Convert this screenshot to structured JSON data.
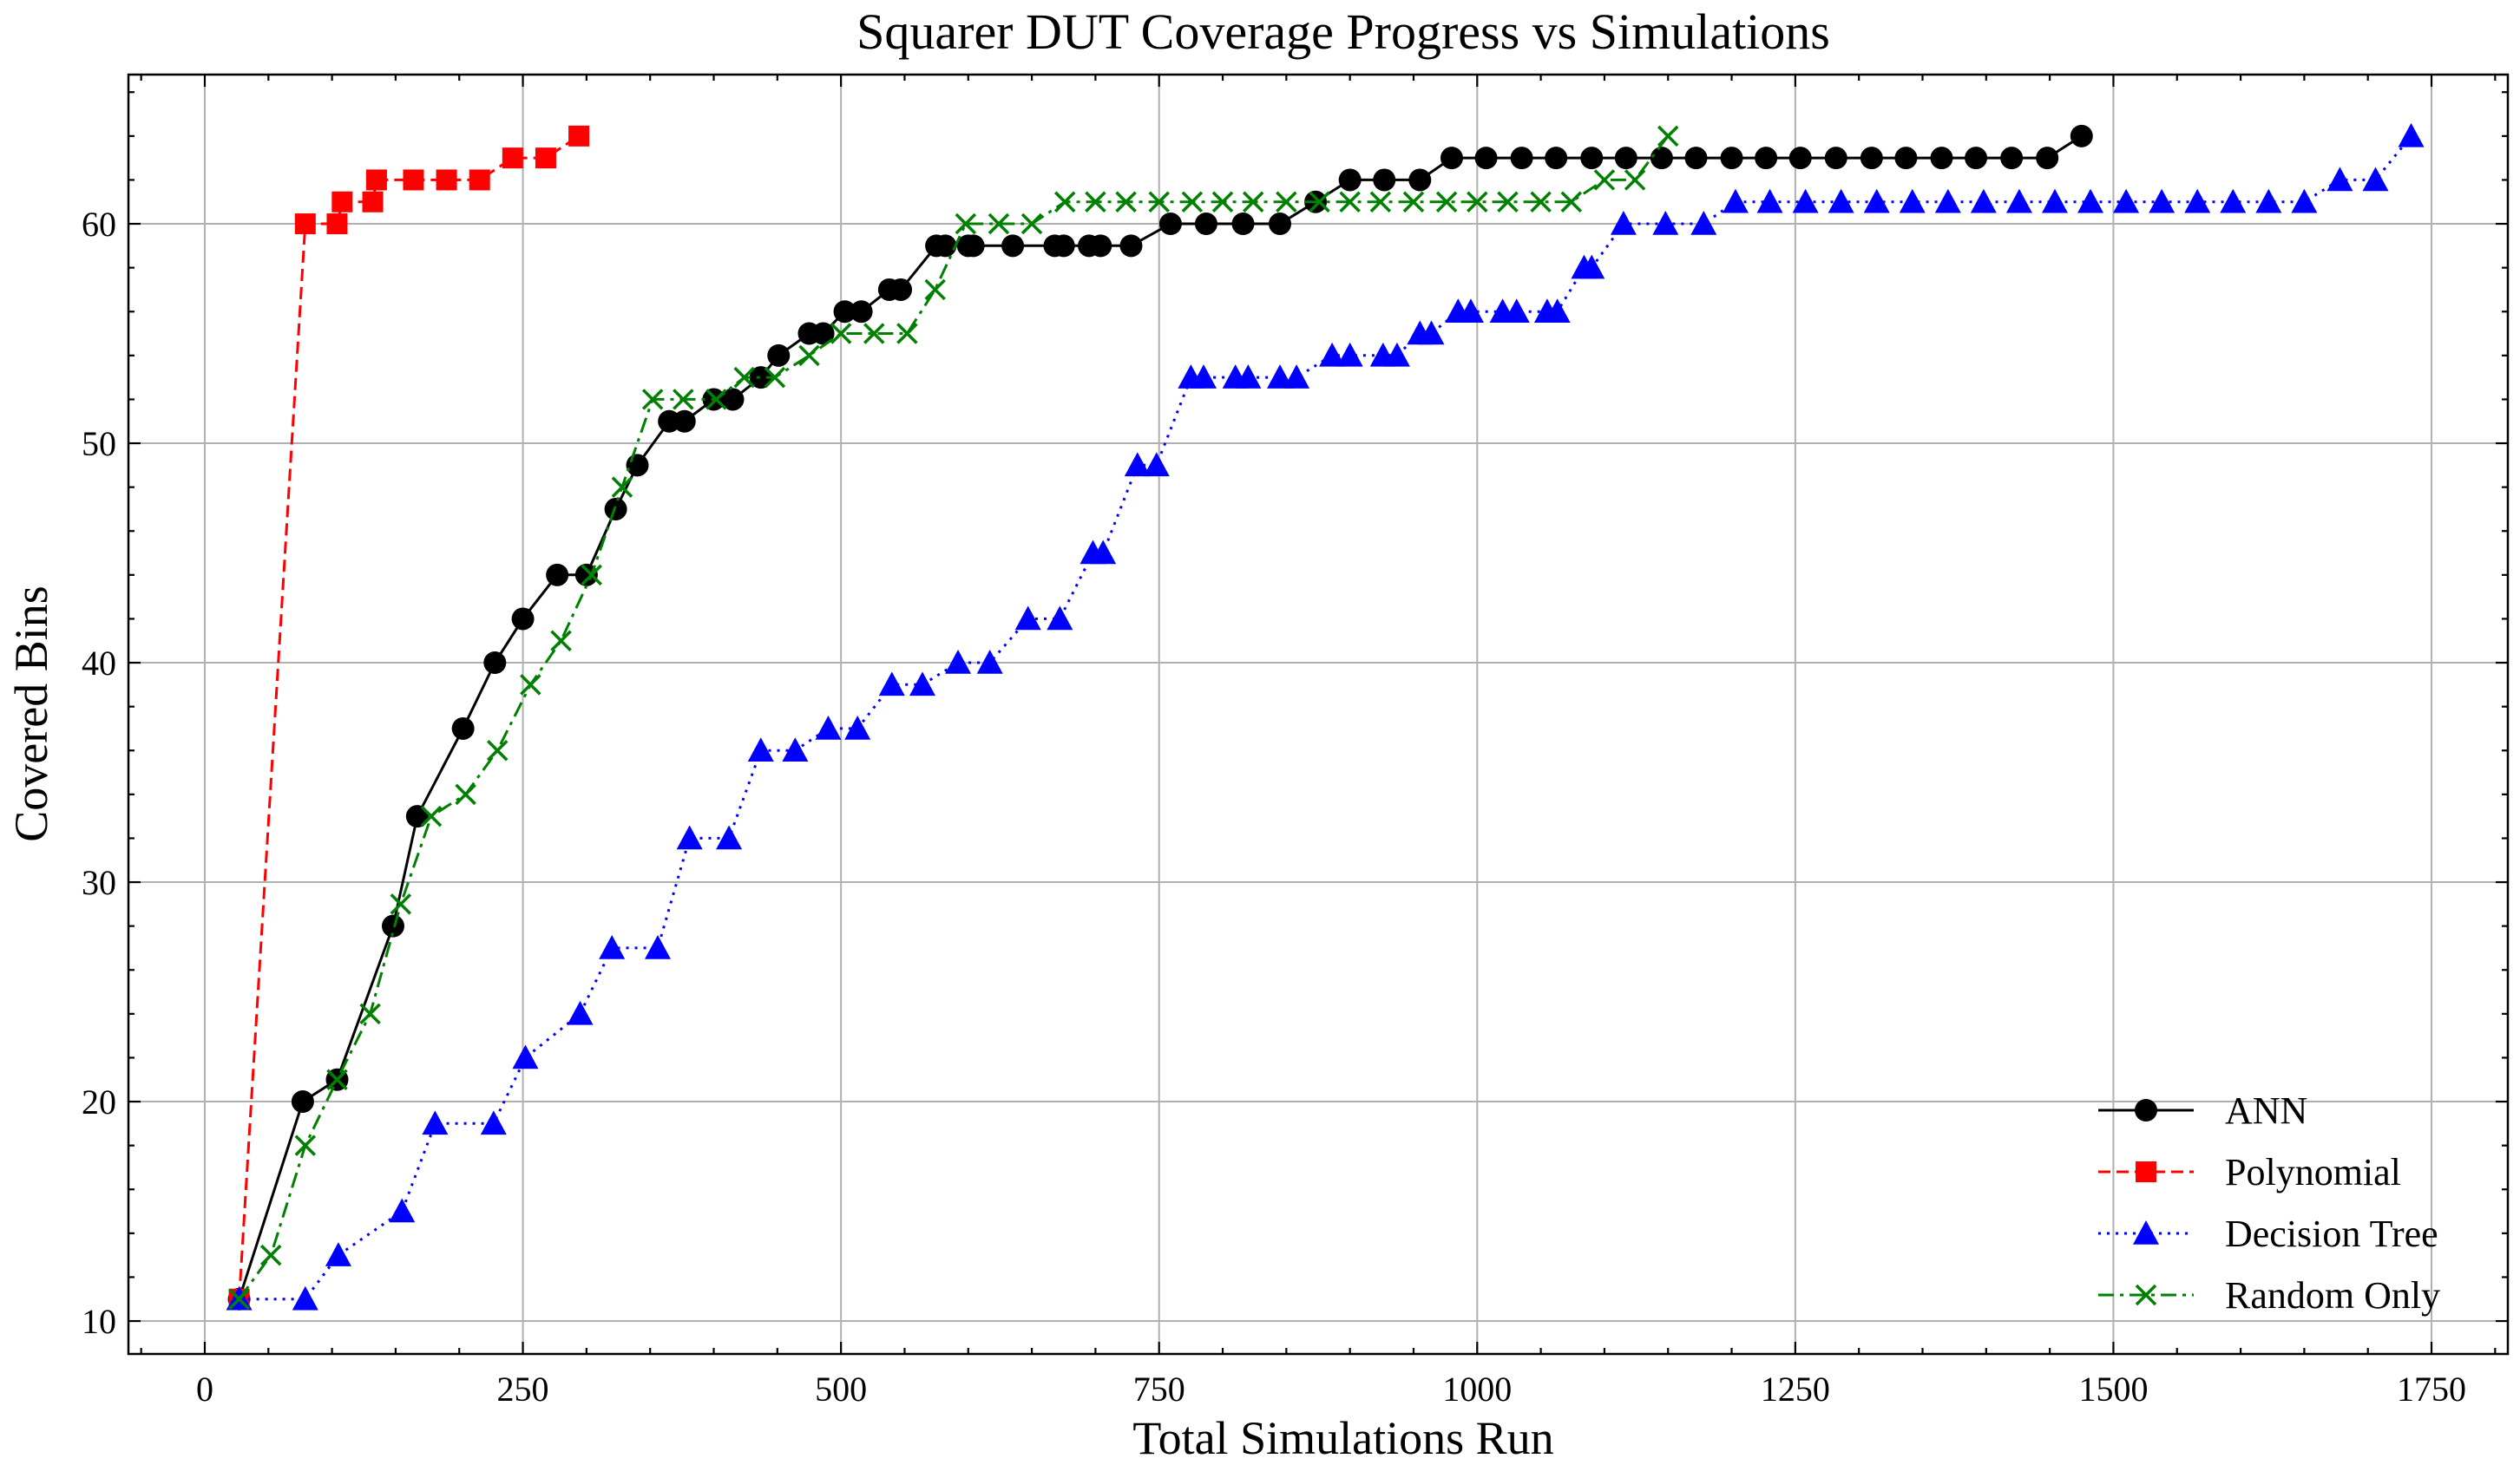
{
  "chart_data": {
    "type": "line",
    "title": "Squarer DUT Coverage Progress vs Simulations",
    "xlabel": "Total Simulations Run",
    "ylabel": "Covered Bins",
    "xlim": [
      -60,
      1810
    ],
    "ylim": [
      8.5,
      66.8
    ],
    "xticks": [
      0,
      250,
      500,
      750,
      1000,
      1250,
      1500,
      1750
    ],
    "yticks": [
      10,
      20,
      30,
      40,
      50,
      60
    ],
    "grid": true,
    "legend_position": "lower-right",
    "series": [
      {
        "name": "ANN",
        "color": "#000000",
        "marker": "circle",
        "line_style": "solid",
        "x": [
          27,
          77,
          104,
          148,
          167,
          203,
          228,
          250,
          277,
          300,
          323,
          340,
          365,
          377,
          400,
          415,
          437,
          451,
          475,
          486,
          503,
          516,
          538,
          547,
          575,
          582,
          600,
          604,
          635,
          668,
          675,
          695,
          704,
          728,
          759,
          787,
          816,
          845,
          873,
          900,
          927,
          955,
          980,
          1007,
          1035,
          1062,
          1090,
          1117,
          1145,
          1172,
          1200,
          1227,
          1254,
          1282,
          1310,
          1337,
          1365,
          1392,
          1420,
          1448,
          1475
        ],
        "y": [
          11,
          20,
          21,
          28,
          33,
          37,
          40,
          42,
          44,
          44,
          47,
          49,
          51,
          51,
          52,
          52,
          53,
          54,
          55,
          55,
          56,
          56,
          57,
          57,
          59,
          59,
          59,
          59,
          59,
          59,
          59,
          59,
          59,
          59,
          60,
          60,
          60,
          60,
          61,
          62,
          62,
          62,
          63,
          63,
          63,
          63,
          63,
          63,
          63,
          63,
          63,
          63,
          63,
          63,
          63,
          63,
          63,
          63,
          63,
          63,
          64
        ]
      },
      {
        "name": "Polynomial",
        "color": "#ff0000",
        "marker": "square",
        "line_style": "dashed",
        "x": [
          27,
          79,
          104,
          108,
          132,
          135,
          164,
          190,
          216,
          242,
          268,
          294
        ],
        "y": [
          11,
          60,
          60,
          61,
          61,
          62,
          62,
          62,
          62,
          63,
          63,
          64
        ]
      },
      {
        "name": "Decision Tree",
        "color": "#0000ff",
        "marker": "triangle",
        "line_style": "dotted",
        "x": [
          27,
          79,
          105,
          155,
          181,
          227,
          252,
          295,
          320,
          356,
          381,
          412,
          437,
          464,
          490,
          513,
          540,
          564,
          592,
          617,
          647,
          672,
          698,
          706,
          733,
          748,
          775,
          785,
          810,
          820,
          845,
          858,
          886,
          900,
          926,
          937,
          955,
          964,
          985,
          995,
          1020,
          1031,
          1055,
          1063,
          1084,
          1090,
          1115,
          1148,
          1178,
          1203,
          1230,
          1258,
          1286,
          1314,
          1342,
          1370,
          1398,
          1426,
          1454,
          1482,
          1510,
          1538,
          1566,
          1594,
          1622,
          1650,
          1678,
          1706,
          1734
        ],
        "y": [
          11,
          11,
          13,
          15,
          19,
          19,
          22,
          24,
          27,
          27,
          32,
          32,
          36,
          36,
          37,
          37,
          39,
          39,
          40,
          40,
          42,
          42,
          45,
          45,
          49,
          49,
          53,
          53,
          53,
          53,
          53,
          53,
          54,
          54,
          54,
          54,
          55,
          55,
          56,
          56,
          56,
          56,
          56,
          56,
          58,
          58,
          60,
          60,
          60,
          61,
          61,
          61,
          61,
          61,
          61,
          61,
          61,
          61,
          61,
          61,
          61,
          61,
          61,
          61,
          61,
          61,
          62,
          62,
          64
        ]
      },
      {
        "name": "Random Only",
        "color": "#008000",
        "marker": "x",
        "line_style": "dashdot",
        "x": [
          27,
          52,
          79,
          104,
          130,
          154,
          178,
          205,
          230,
          256,
          280,
          304,
          328,
          352,
          376,
          402,
          424,
          448,
          475,
          500,
          526,
          552,
          574,
          598,
          624,
          650,
          676,
          700,
          724,
          750,
          776,
          800,
          824,
          850,
          876,
          900,
          924,
          950,
          976,
          1000,
          1024,
          1050,
          1074,
          1100,
          1124,
          1150
        ],
        "y": [
          11,
          13,
          18,
          21,
          24,
          29,
          33,
          34,
          36,
          39,
          41,
          44,
          48,
          52,
          52,
          52,
          53,
          53,
          54,
          55,
          55,
          55,
          57,
          60,
          60,
          60,
          61,
          61,
          61,
          61,
          61,
          61,
          61,
          61,
          61,
          61,
          61,
          61,
          61,
          61,
          61,
          61,
          61,
          62,
          62,
          64
        ]
      }
    ]
  }
}
